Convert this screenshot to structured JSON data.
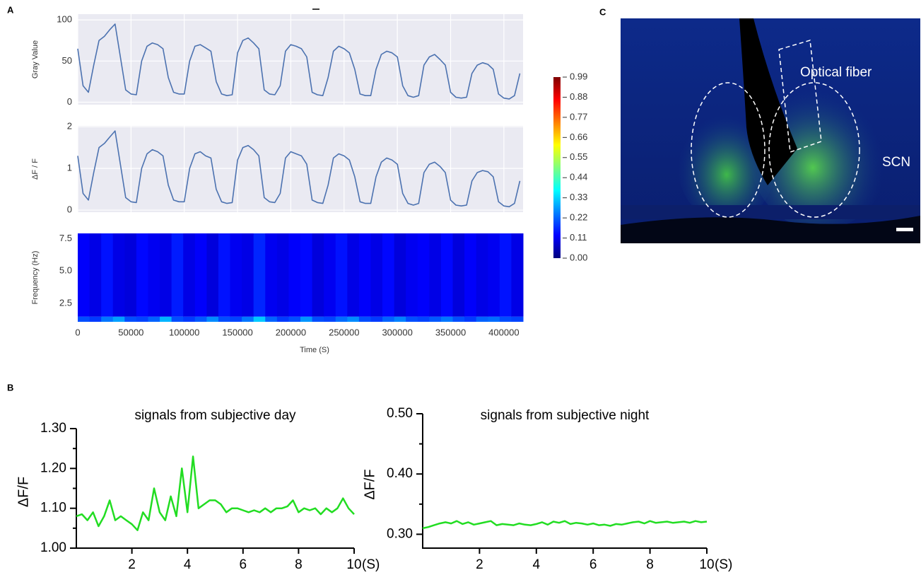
{
  "panel_labels": [
    "A",
    "B",
    "C"
  ],
  "chart_data": [
    {
      "type": "line",
      "ylabel": "Gray Value",
      "color": "#4c72b0",
      "grid": true,
      "xlim": [
        0,
        418000
      ],
      "ylim": [
        -3,
        107
      ],
      "xticks": [
        0,
        50000,
        100000,
        150000,
        200000,
        250000,
        300000,
        350000,
        400000
      ],
      "yticks": [
        0,
        50,
        100
      ],
      "x": [
        0,
        5000,
        10000,
        15000,
        20000,
        25000,
        30000,
        35000,
        40000,
        45000,
        50000,
        55000,
        60000,
        65000,
        70000,
        75000,
        80000,
        85000,
        90000,
        95000,
        100000,
        105000,
        110000,
        115000,
        120000,
        125000,
        130000,
        135000,
        140000,
        145000,
        150000,
        155000,
        160000,
        165000,
        170000,
        175000,
        180000,
        185000,
        190000,
        195000,
        200000,
        205000,
        210000,
        215000,
        220000,
        225000,
        230000,
        235000,
        240000,
        245000,
        250000,
        255000,
        260000,
        265000,
        270000,
        275000,
        280000,
        285000,
        290000,
        295000,
        300000,
        305000,
        310000,
        315000,
        320000,
        325000,
        330000,
        335000,
        340000,
        345000,
        350000,
        355000,
        360000,
        365000,
        370000,
        375000,
        380000,
        385000,
        390000,
        395000,
        400000,
        405000,
        410000,
        415000
      ],
      "values": [
        65,
        20,
        12,
        45,
        75,
        80,
        88,
        95,
        55,
        15,
        10,
        9,
        50,
        68,
        72,
        70,
        65,
        30,
        12,
        10,
        10,
        50,
        68,
        70,
        66,
        62,
        25,
        10,
        8,
        9,
        60,
        75,
        78,
        72,
        65,
        15,
        10,
        9,
        20,
        62,
        70,
        68,
        65,
        55,
        12,
        9,
        8,
        30,
        62,
        68,
        65,
        60,
        40,
        10,
        8,
        8,
        40,
        58,
        62,
        60,
        55,
        20,
        8,
        6,
        8,
        45,
        55,
        58,
        52,
        45,
        12,
        6,
        5,
        6,
        35,
        45,
        48,
        46,
        40,
        10,
        5,
        4,
        8,
        35
      ]
    },
    {
      "type": "line",
      "ylabel": "ΔF / F",
      "color": "#4c72b0",
      "grid": true,
      "xlim": [
        0,
        418000
      ],
      "ylim": [
        -0.05,
        2.02
      ],
      "xticks": [
        0,
        50000,
        100000,
        150000,
        200000,
        250000,
        300000,
        350000,
        400000
      ],
      "yticks": [
        0,
        1,
        2
      ],
      "x": [
        0,
        5000,
        10000,
        15000,
        20000,
        25000,
        30000,
        35000,
        40000,
        45000,
        50000,
        55000,
        60000,
        65000,
        70000,
        75000,
        80000,
        85000,
        90000,
        95000,
        100000,
        105000,
        110000,
        115000,
        120000,
        125000,
        130000,
        135000,
        140000,
        145000,
        150000,
        155000,
        160000,
        165000,
        170000,
        175000,
        180000,
        185000,
        190000,
        195000,
        200000,
        205000,
        210000,
        215000,
        220000,
        225000,
        230000,
        235000,
        240000,
        245000,
        250000,
        255000,
        260000,
        265000,
        270000,
        275000,
        280000,
        285000,
        290000,
        295000,
        300000,
        305000,
        310000,
        315000,
        320000,
        325000,
        330000,
        335000,
        340000,
        345000,
        350000,
        355000,
        360000,
        365000,
        370000,
        375000,
        380000,
        385000,
        390000,
        395000,
        400000,
        405000,
        410000,
        415000
      ],
      "values": [
        1.3,
        0.4,
        0.24,
        0.9,
        1.5,
        1.6,
        1.75,
        1.9,
        1.1,
        0.3,
        0.2,
        0.18,
        1.0,
        1.35,
        1.45,
        1.4,
        1.3,
        0.6,
        0.24,
        0.2,
        0.2,
        1.0,
        1.35,
        1.4,
        1.3,
        1.25,
        0.5,
        0.2,
        0.16,
        0.18,
        1.2,
        1.5,
        1.55,
        1.45,
        1.3,
        0.3,
        0.2,
        0.18,
        0.4,
        1.25,
        1.4,
        1.35,
        1.3,
        1.1,
        0.24,
        0.18,
        0.16,
        0.6,
        1.25,
        1.35,
        1.3,
        1.2,
        0.8,
        0.2,
        0.16,
        0.16,
        0.8,
        1.15,
        1.25,
        1.2,
        1.1,
        0.4,
        0.16,
        0.12,
        0.16,
        0.9,
        1.1,
        1.15,
        1.05,
        0.9,
        0.24,
        0.12,
        0.1,
        0.12,
        0.7,
        0.9,
        0.95,
        0.92,
        0.8,
        0.2,
        0.1,
        0.08,
        0.16,
        0.7
      ]
    },
    {
      "type": "heatmap",
      "xlabel": "Time (S)",
      "ylabel": "Frequency (Hz)",
      "xlim": [
        0,
        418000
      ],
      "ylim": [
        1.1,
        7.9
      ],
      "xticks": [
        0,
        50000,
        100000,
        150000,
        200000,
        250000,
        300000,
        350000,
        400000
      ],
      "yticks": [
        2.5,
        {
          "value": 5,
          "label": "5.0"
        },
        7.5
      ],
      "x_edges": [
        0,
        11000,
        22000,
        33000,
        44000,
        55000,
        66000,
        77000,
        88000,
        99000,
        110000,
        121000,
        132000,
        143000,
        154000,
        165000,
        176000,
        187000,
        198000,
        209000,
        220000,
        231000,
        242000,
        253000,
        264000,
        275000,
        286000,
        297000,
        308000,
        319000,
        330000,
        341000,
        352000,
        363000,
        374000,
        385000,
        396000,
        407000,
        418000
      ],
      "y_edges": [
        1.1,
        1.5,
        7.9
      ],
      "z": [
        [
          0.2,
          0.18,
          0.24,
          0.28,
          0.2,
          0.19,
          0.22,
          0.3,
          0.2,
          0.18,
          0.21,
          0.26,
          0.2,
          0.19,
          0.24,
          0.32,
          0.22,
          0.18,
          0.2,
          0.27,
          0.2,
          0.19,
          0.23,
          0.26,
          0.2,
          0.18,
          0.22,
          0.25,
          0.2,
          0.19,
          0.21,
          0.24,
          0.2,
          0.18,
          0.22,
          0.23,
          0.2,
          0.19
        ],
        [
          0.12,
          0.1,
          0.14,
          0.1,
          0.09,
          0.13,
          0.11,
          0.1,
          0.15,
          0.1,
          0.12,
          0.09,
          0.14,
          0.11,
          0.1,
          0.16,
          0.11,
          0.1,
          0.12,
          0.13,
          0.09,
          0.11,
          0.14,
          0.1,
          0.12,
          0.1,
          0.13,
          0.09,
          0.11,
          0.12,
          0.1,
          0.13,
          0.09,
          0.12,
          0.1,
          0.11,
          0.14,
          0.1
        ]
      ],
      "colorscale": [
        "#00007f",
        "#0000ff",
        "#007fff",
        "#00ffff",
        "#7fff7f",
        "#ffff00",
        "#ff7f00",
        "#ff0000",
        "#7f0000"
      ],
      "colorbar": {
        "lim": [
          0,
          0.99
        ],
        "ticks": [
          {
            "value": 0,
            "label": "0.00"
          },
          0.11,
          0.22,
          0.33,
          0.44,
          0.55,
          0.66,
          0.77,
          0.88,
          0.99
        ]
      }
    },
    {
      "type": "line",
      "title": "signals from subjective day",
      "ylabel": "ΔF/F",
      "xlabel": "(S)",
      "color": "#22dd22",
      "xlim": [
        0,
        10
      ],
      "ylim": [
        1,
        1.3
      ],
      "xticks": [
        2,
        4,
        6,
        8,
        10
      ],
      "yticks": [
        {
          "value": 1,
          "label": "1.00"
        },
        {
          "value": 1.1,
          "label": "1.10"
        },
        {
          "value": 1.2,
          "label": "1.20"
        },
        {
          "value": 1.3,
          "label": "1.30"
        }
      ],
      "yminorticks": [
        1.05,
        1.15,
        1.25
      ],
      "x": [
        0,
        0.2,
        0.4,
        0.6,
        0.8,
        1,
        1.2,
        1.4,
        1.6,
        1.8,
        2,
        2.2,
        2.4,
        2.6,
        2.8,
        3,
        3.2,
        3.4,
        3.6,
        3.8,
        4,
        4.2,
        4.4,
        4.6,
        4.8,
        5,
        5.2,
        5.4,
        5.6,
        5.8,
        6,
        6.2,
        6.4,
        6.6,
        6.8,
        7,
        7.2,
        7.4,
        7.6,
        7.8,
        8,
        8.2,
        8.4,
        8.6,
        8.8,
        9,
        9.2,
        9.4,
        9.6,
        9.8,
        10
      ],
      "values": [
        1.08,
        1.085,
        1.07,
        1.09,
        1.055,
        1.08,
        1.12,
        1.07,
        1.08,
        1.07,
        1.06,
        1.045,
        1.09,
        1.07,
        1.15,
        1.09,
        1.07,
        1.13,
        1.08,
        1.2,
        1.09,
        1.23,
        1.1,
        1.11,
        1.12,
        1.12,
        1.11,
        1.09,
        1.1,
        1.1,
        1.095,
        1.09,
        1.095,
        1.09,
        1.1,
        1.09,
        1.1,
        1.1,
        1.105,
        1.12,
        1.09,
        1.1,
        1.095,
        1.1,
        1.085,
        1.1,
        1.09,
        1.1,
        1.125,
        1.1,
        1.085
      ]
    },
    {
      "type": "line",
      "title": "signals from subjective night",
      "ylabel": "ΔF/F",
      "xlabel": "(S)",
      "color": "#22dd22",
      "xlim": [
        0,
        10
      ],
      "ylim": [
        0.277,
        0.5
      ],
      "xticks": [
        2,
        4,
        6,
        8,
        10
      ],
      "yticks": [
        {
          "value": 0.3,
          "label": "0.30"
        },
        {
          "value": 0.4,
          "label": "0.40"
        },
        {
          "value": 0.5,
          "label": "0.50"
        }
      ],
      "yminorticks": [
        0.35,
        0.45
      ],
      "x": [
        0,
        0.2,
        0.4,
        0.6,
        0.8,
        1,
        1.2,
        1.4,
        1.6,
        1.8,
        2,
        2.2,
        2.4,
        2.6,
        2.8,
        3,
        3.2,
        3.4,
        3.6,
        3.8,
        4,
        4.2,
        4.4,
        4.6,
        4.8,
        5,
        5.2,
        5.4,
        5.6,
        5.8,
        6,
        6.2,
        6.4,
        6.6,
        6.8,
        7,
        7.2,
        7.4,
        7.6,
        7.8,
        8,
        8.2,
        8.4,
        8.6,
        8.8,
        9,
        9.2,
        9.4,
        9.6,
        9.8,
        10
      ],
      "values": [
        0.31,
        0.312,
        0.315,
        0.318,
        0.32,
        0.318,
        0.322,
        0.317,
        0.32,
        0.316,
        0.318,
        0.32,
        0.322,
        0.315,
        0.317,
        0.316,
        0.315,
        0.318,
        0.316,
        0.315,
        0.317,
        0.32,
        0.316,
        0.321,
        0.319,
        0.322,
        0.317,
        0.319,
        0.318,
        0.316,
        0.318,
        0.315,
        0.316,
        0.314,
        0.317,
        0.316,
        0.318,
        0.32,
        0.321,
        0.318,
        0.322,
        0.319,
        0.32,
        0.321,
        0.319,
        0.32,
        0.321,
        0.319,
        0.322,
        0.32,
        0.321
      ]
    }
  ],
  "image": {
    "labels": [
      "Optical fiber",
      "SCN"
    ]
  }
}
